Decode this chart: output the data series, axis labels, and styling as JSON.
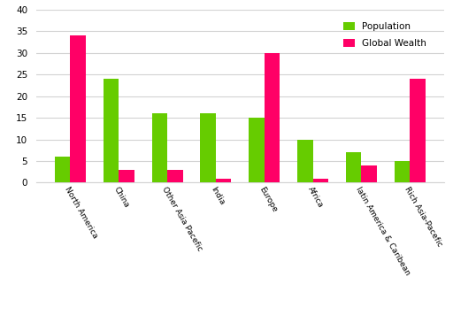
{
  "categories": [
    "North America",
    "China",
    "Other Asia Pacefic",
    "India",
    "Europe",
    "Africa",
    "latin America & Caribean",
    "Rich Asia-Pacefic"
  ],
  "population": [
    6,
    24,
    16,
    16,
    15,
    10,
    7,
    5
  ],
  "global_wealth": [
    34,
    3,
    3,
    1,
    30,
    1,
    4,
    24
  ],
  "pop_color": "#66cc00",
  "wealth_color": "#ff0066",
  "ylim": [
    0,
    40
  ],
  "yticks": [
    0,
    5,
    10,
    15,
    20,
    25,
    30,
    35,
    40
  ],
  "legend_pop": "Population",
  "legend_wealth": "Global Wealth",
  "background_color": "#ffffff",
  "bar_width": 0.32
}
